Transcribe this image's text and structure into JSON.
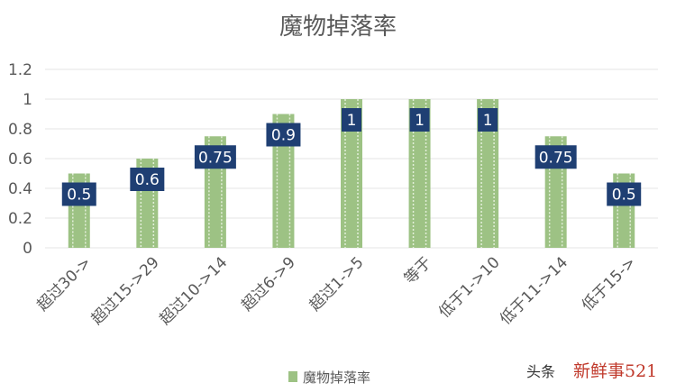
{
  "chart_data": {
    "type": "bar",
    "title": "魔物掉落率",
    "categories": [
      "超过30->",
      "超过15->29",
      "超过10->14",
      "超过6->9",
      "超过1->5",
      "等于",
      "低于1->10",
      "低于11->14",
      "低于15->"
    ],
    "series": [
      {
        "name": "魔物掉落率",
        "values": [
          0.5,
          0.6,
          0.75,
          0.9,
          1,
          1,
          1,
          0.75,
          0.5
        ]
      }
    ],
    "data_labels": [
      "0.5",
      "0.6",
      "0.75",
      "0.9",
      "1",
      "1",
      "1",
      "0.75",
      "0.5"
    ],
    "ylim": [
      0,
      1.2
    ],
    "yticks": [
      0,
      0.2,
      0.4,
      0.6,
      0.8,
      1,
      1.2
    ],
    "ytick_labels": [
      "0",
      "0.2",
      "0.4",
      "0.6",
      "0.8",
      "1",
      "1.2"
    ],
    "grid": true,
    "legend_position": "bottom",
    "colors": {
      "bar": "#9dc284",
      "bar_stripe": "#e2eed8",
      "label_bg": "#1f3f73",
      "grid": "#e5e5e5",
      "text": "#595959"
    }
  },
  "watermark": {
    "prefix": "头条",
    "suffix": "新鲜事521"
  }
}
